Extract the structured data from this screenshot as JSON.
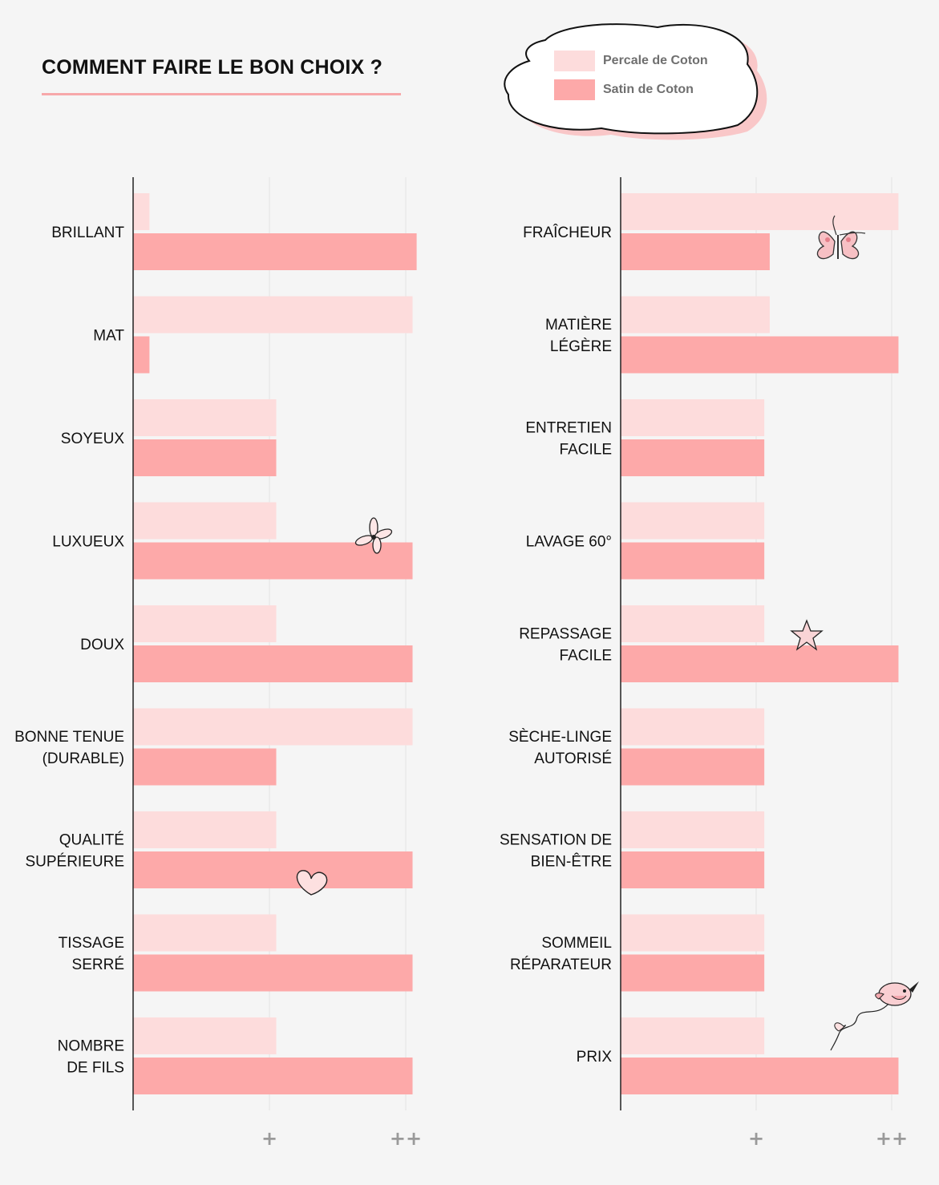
{
  "title": "COMMENT FAIRE LE BON CHOIX ?",
  "legend": {
    "items": [
      {
        "label": "Percale de Coton",
        "color": "#fddcdc"
      },
      {
        "label": "Satin de Coton",
        "color": "#fda9a9"
      }
    ]
  },
  "chart_data": [
    {
      "type": "bar",
      "orientation": "horizontal",
      "categories": [
        [
          "BRILLANT"
        ],
        [
          "MAT"
        ],
        [
          "SOYEUX"
        ],
        [
          "LUXUEUX"
        ],
        [
          "DOUX"
        ],
        [
          "BONNE TENUE",
          "(DURABLE)"
        ],
        [
          "QUALITÉ",
          "SUPÉRIEURE"
        ],
        [
          "TISSAGE",
          "SERRÉ"
        ],
        [
          "NOMBRE",
          "DE FILS"
        ]
      ],
      "series": [
        {
          "name": "Percale de Coton",
          "values": [
            0.12,
            2.05,
            1.05,
            1.05,
            1.05,
            2.05,
            1.05,
            1.05,
            1.05
          ]
        },
        {
          "name": "Satin de Coton",
          "values": [
            2.08,
            0.12,
            1.05,
            2.05,
            2.05,
            1.05,
            2.05,
            2.05,
            2.05
          ]
        }
      ],
      "xlim": [
        0,
        2.2
      ],
      "ticks": [
        {
          "value": 1,
          "label": "+"
        },
        {
          "value": 2,
          "label": "++"
        }
      ]
    },
    {
      "type": "bar",
      "orientation": "horizontal",
      "categories": [
        [
          "FRAÎCHEUR"
        ],
        [
          "MATIÈRE",
          "LÉGÈRE"
        ],
        [
          "ENTRETIEN",
          "FACILE"
        ],
        [
          "LAVAGE 60°"
        ],
        [
          "REPASSAGE",
          "FACILE"
        ],
        [
          "SÈCHE-LINGE",
          "AUTORISÉ"
        ],
        [
          "SENSATION DE",
          "BIEN-ÊTRE"
        ],
        [
          "SOMMEIL",
          "RÉPARATEUR"
        ],
        [
          "PRIX"
        ]
      ],
      "series": [
        {
          "name": "Percale de Coton",
          "values": [
            2.05,
            1.1,
            1.06,
            1.06,
            1.06,
            1.06,
            1.06,
            1.06,
            1.06
          ]
        },
        {
          "name": "Satin de Coton",
          "values": [
            1.1,
            2.05,
            1.06,
            1.06,
            2.05,
            1.06,
            1.06,
            1.06,
            2.05
          ]
        }
      ],
      "xlim": [
        0,
        2.2
      ],
      "ticks": [
        {
          "value": 1,
          "label": "+"
        },
        {
          "value": 2,
          "label": "++"
        }
      ]
    }
  ]
}
